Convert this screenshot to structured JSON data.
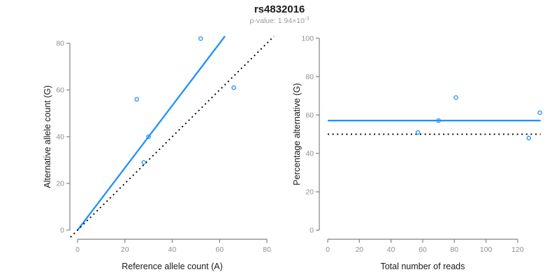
{
  "header": {
    "title": "rs4832016",
    "subtitle_prefix": "p-value: 1.94×10",
    "subtitle_exponent": "-3"
  },
  "colors": {
    "accent_blue": "#1E90FF",
    "reference_black": "#000000",
    "axis_line": "#828282",
    "tick_label": "#8f8f8f",
    "axis_title": "#1a1a1a",
    "subtitle_gray": "#9b9b9b"
  },
  "chart_data": [
    {
      "id": "allele-counts-panel",
      "type": "scatter",
      "xlabel": "Reference allele count (A)",
      "ylabel": "Alternative allele count (G)",
      "xlim": [
        -3.25,
        83.25
      ],
      "ylim": [
        -3.9,
        83.0
      ],
      "xticks": [
        0,
        20,
        40,
        60,
        80
      ],
      "yticks": [
        0,
        20,
        40,
        60,
        80
      ],
      "grid": false,
      "legend": "none",
      "points": [
        [
          25,
          56
        ],
        [
          28,
          29
        ],
        [
          30,
          40
        ],
        [
          52,
          82
        ],
        [
          66,
          61
        ]
      ],
      "lines": [
        {
          "name": "fit-line",
          "style": "solid",
          "color_key": "accent_blue",
          "x1": 0,
          "y1": 0,
          "x2": 62.25,
          "y2": 83
        },
        {
          "name": "identity-line",
          "style": "dotted",
          "color_key": "reference_black",
          "x1": -3,
          "y1": -3,
          "x2": 83,
          "y2": 83
        }
      ]
    },
    {
      "id": "percentage-reads-panel",
      "type": "scatter",
      "xlabel": "Total number of reads",
      "ylabel": "Percentage alternative (G)",
      "xlim": [
        -5.3,
        139.5
      ],
      "ylim": [
        -4.7,
        101.0
      ],
      "xticks": [
        0,
        20,
        40,
        60,
        80,
        100,
        120
      ],
      "yticks": [
        0,
        20,
        40,
        60,
        80,
        100
      ],
      "grid": false,
      "legend": "none",
      "points": [
        [
          57,
          50.9
        ],
        [
          70,
          57.1
        ],
        [
          81,
          69.1
        ],
        [
          127,
          48
        ],
        [
          134,
          61.2
        ]
      ],
      "lines": [
        {
          "name": "mean-percentage-line",
          "style": "solid",
          "color_key": "accent_blue",
          "x1": 0,
          "y1": 57.1,
          "x2": 134.5,
          "y2": 57.1
        },
        {
          "name": "expected-50pct-line",
          "style": "dotted",
          "color_key": "reference_black",
          "x1": 0,
          "y1": 50,
          "x2": 134.5,
          "y2": 50
        }
      ]
    }
  ]
}
